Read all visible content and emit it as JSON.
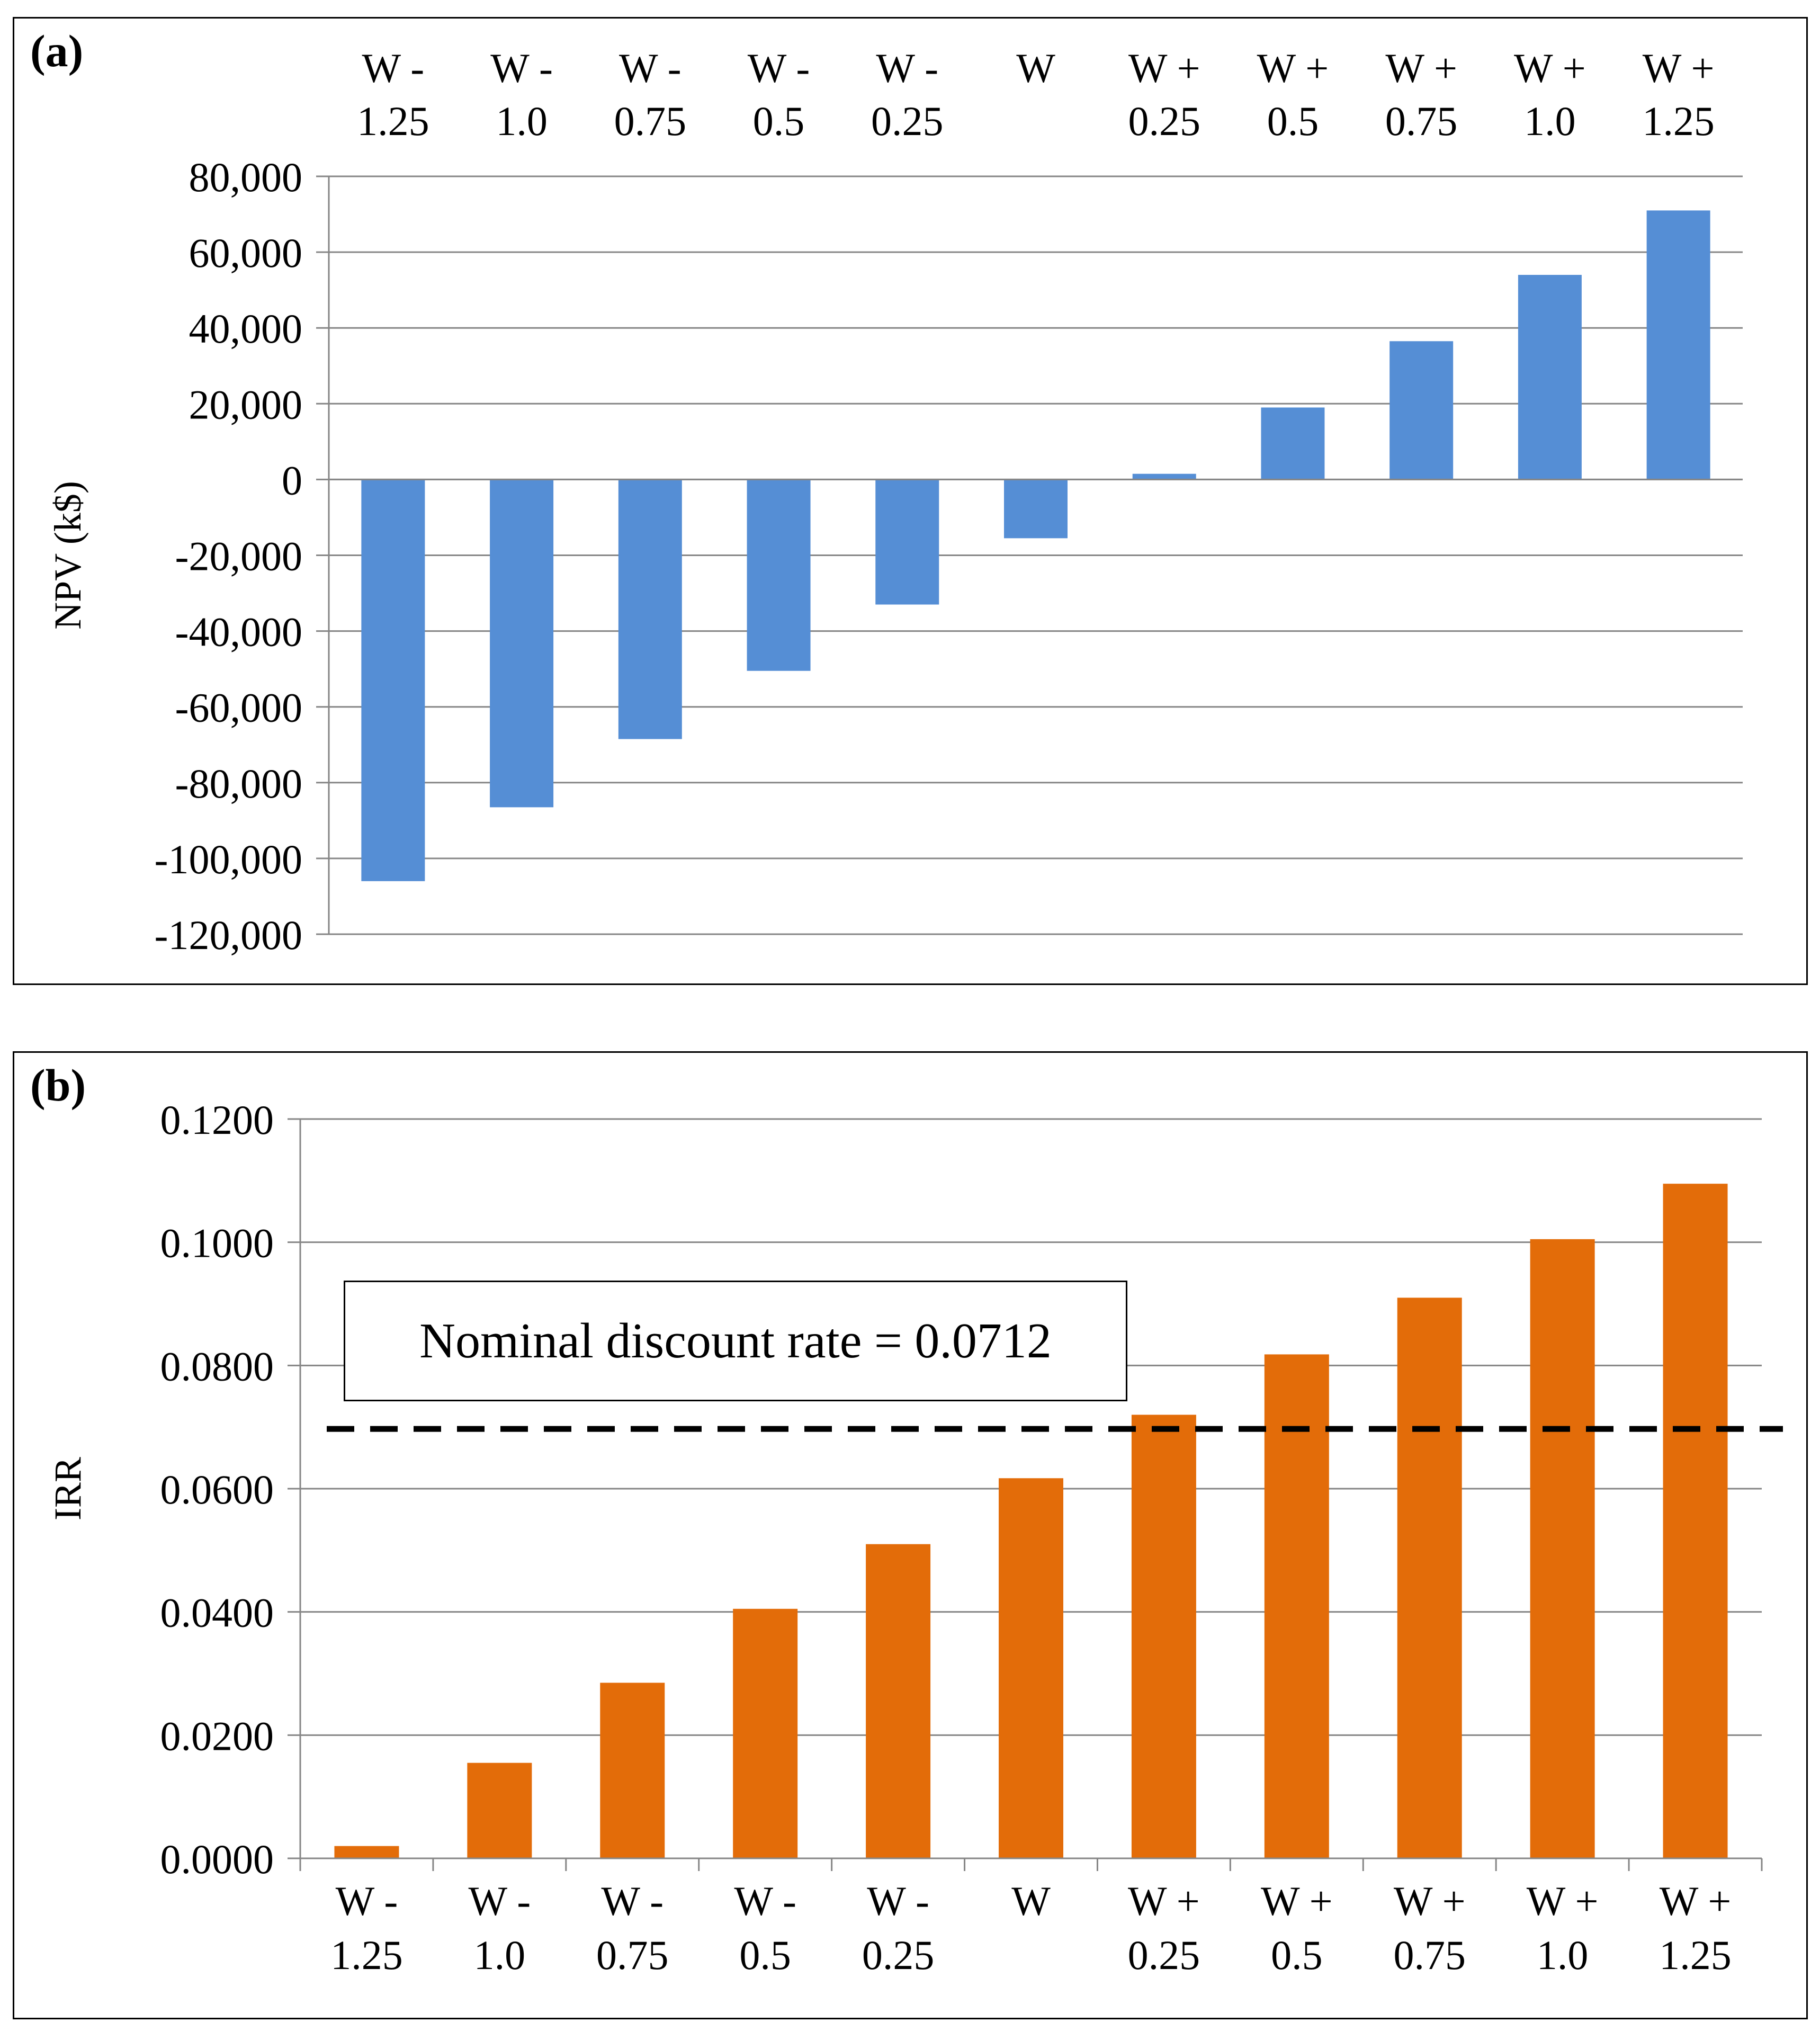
{
  "chart_data": [
    {
      "panel": "(a)",
      "type": "bar",
      "categories": [
        [
          "W -",
          "1.25"
        ],
        [
          "W -",
          "1.0"
        ],
        [
          "W -",
          "0.75"
        ],
        [
          "W -",
          "0.5"
        ],
        [
          "W -",
          "0.25"
        ],
        [
          "W",
          ""
        ],
        [
          "W +",
          "0.25"
        ],
        [
          "W +",
          "0.5"
        ],
        [
          "W +",
          "0.75"
        ],
        [
          "W +",
          "1.0"
        ],
        [
          "W +",
          "1.25"
        ]
      ],
      "values": [
        -106000,
        -86500,
        -68500,
        -50500,
        -33000,
        -15500,
        1500,
        19000,
        36500,
        54000,
        71000
      ],
      "ylabel": "NPV (k$)",
      "ylim": [
        -120000,
        80000
      ],
      "yticks": [
        80000,
        60000,
        40000,
        20000,
        0,
        -20000,
        -40000,
        -60000,
        -80000,
        -100000,
        -120000
      ],
      "ytick_labels": [
        "80,000",
        "60,000",
        "40,000",
        "20,000",
        "0",
        "-20,000",
        "-40,000",
        "-60,000",
        "-80,000",
        "-100,000",
        "-120,000"
      ],
      "category_axis": "top",
      "grid": true,
      "color": "#558ED5"
    },
    {
      "panel": "(b)",
      "type": "bar",
      "categories": [
        [
          "W -",
          "1.25"
        ],
        [
          "W -",
          "1.0"
        ],
        [
          "W -",
          "0.75"
        ],
        [
          "W -",
          "0.5"
        ],
        [
          "W -",
          "0.25"
        ],
        [
          "W",
          ""
        ],
        [
          "W +",
          "0.25"
        ],
        [
          "W +",
          "0.5"
        ],
        [
          "W +",
          "0.75"
        ],
        [
          "W +",
          "1.0"
        ],
        [
          "W +",
          "1.25"
        ]
      ],
      "values": [
        0.002,
        0.0155,
        0.0285,
        0.0405,
        0.051,
        0.0617,
        0.072,
        0.0818,
        0.091,
        0.1005,
        0.1095
      ],
      "ylabel": "IRR",
      "ylim": [
        0,
        0.12
      ],
      "yticks": [
        0.12,
        0.1,
        0.08,
        0.06,
        0.04,
        0.02,
        0
      ],
      "ytick_labels": [
        "0.1200",
        "0.1000",
        "0.0800",
        "0.0600",
        "0.0400",
        "0.0200",
        "0.0000"
      ],
      "category_axis": "bottom",
      "grid": true,
      "color": "#E36C09",
      "reference_line": {
        "value": 0.0697,
        "style": "dashed",
        "color": "#000000"
      },
      "annotation": "Nominal discount rate = 0.0712"
    }
  ]
}
